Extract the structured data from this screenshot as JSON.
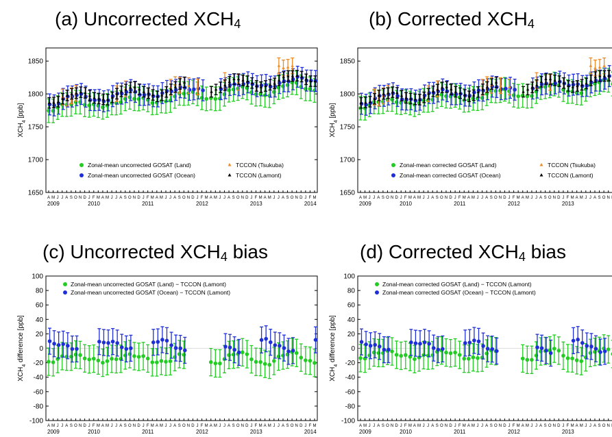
{
  "colors": {
    "land": "#22cc22",
    "ocean": "#1f2fd6",
    "tsukuba": "#f08a22",
    "lamont": "#000000"
  },
  "month_letters": [
    "J",
    "F",
    "M",
    "A",
    "M",
    "J",
    "J",
    "A",
    "S",
    "O",
    "N",
    "D"
  ],
  "years": [
    "2009",
    "2010",
    "2011",
    "2012",
    "2013",
    "2014"
  ],
  "chart_data": [
    {
      "id": "a",
      "type": "scatter",
      "title_pre": "(a) Uncorrected XCH",
      "title_sub": "4",
      "ylabel_pre": "XCH",
      "ylabel_sub": "4",
      "ylabel_post": " [ppb]",
      "ylim": [
        1650,
        1870
      ],
      "yticks": [
        1650,
        1700,
        1750,
        1800,
        1850
      ],
      "xrange": [
        "2009-04",
        "2014-03"
      ],
      "legend": [
        "Zonal-mean uncorrected GOSAT (Land)",
        "Zonal-mean uncorrected GOSAT (Ocean)",
        "TCCON (Tsukuba)",
        "TCCON (Lamont)"
      ],
      "kind": "conc",
      "corrected": false
    },
    {
      "id": "b",
      "type": "scatter",
      "title_pre": "(b) Corrected XCH",
      "title_sub": "4",
      "ylabel_pre": "XCH",
      "ylabel_sub": "4",
      "ylabel_post": " [ppb]",
      "ylim": [
        1650,
        1870
      ],
      "yticks": [
        1650,
        1700,
        1750,
        1800,
        1850
      ],
      "xrange": [
        "2009-04",
        "2014-03"
      ],
      "legend": [
        "Zonal-mean corrected GOSAT (Land)",
        "Zonal-mean corrected GOSAT (Ocean)",
        "TCCON (Tsukuba)",
        "TCCON (Lamont)"
      ],
      "kind": "conc",
      "corrected": true
    },
    {
      "id": "c",
      "type": "scatter",
      "title_pre": "(c) Uncorrected XCH",
      "title_sub": "4",
      "title_post": " bias",
      "ylabel_pre": "XCH",
      "ylabel_sub": "4",
      "ylabel_post": " difference [ppb]",
      "ylim": [
        -100,
        100
      ],
      "yticks": [
        -100,
        -80,
        -60,
        -40,
        -20,
        0,
        20,
        40,
        60,
        80,
        100
      ],
      "xrange": [
        "2009-04",
        "2014-03"
      ],
      "legend": [
        "Zonal-mean uncorrected GOSAT (Land) − TCCON (Lamont)",
        "Zonal-mean uncorrected GOSAT (Ocean) − TCCON (Lamont)"
      ],
      "kind": "bias",
      "corrected": false
    },
    {
      "id": "d",
      "type": "scatter",
      "title_pre": "(d) Corrected XCH",
      "title_sub": "4",
      "title_post": " bias",
      "ylabel_pre": "XCH",
      "ylabel_sub": "4",
      "ylabel_post": " difference [ppb]",
      "ylim": [
        -100,
        100
      ],
      "yticks": [
        -100,
        -80,
        -60,
        -40,
        -20,
        0,
        20,
        40,
        60,
        80,
        100
      ],
      "xrange": [
        "2009-04",
        "2014-03"
      ],
      "legend": [
        "Zonal-mean corrected GOSAT (Land) − TCCON (Lamont)",
        "Zonal-mean corrected GOSAT (Ocean) − TCCON (Lamont)"
      ],
      "kind": "bias",
      "corrected": true
    }
  ]
}
